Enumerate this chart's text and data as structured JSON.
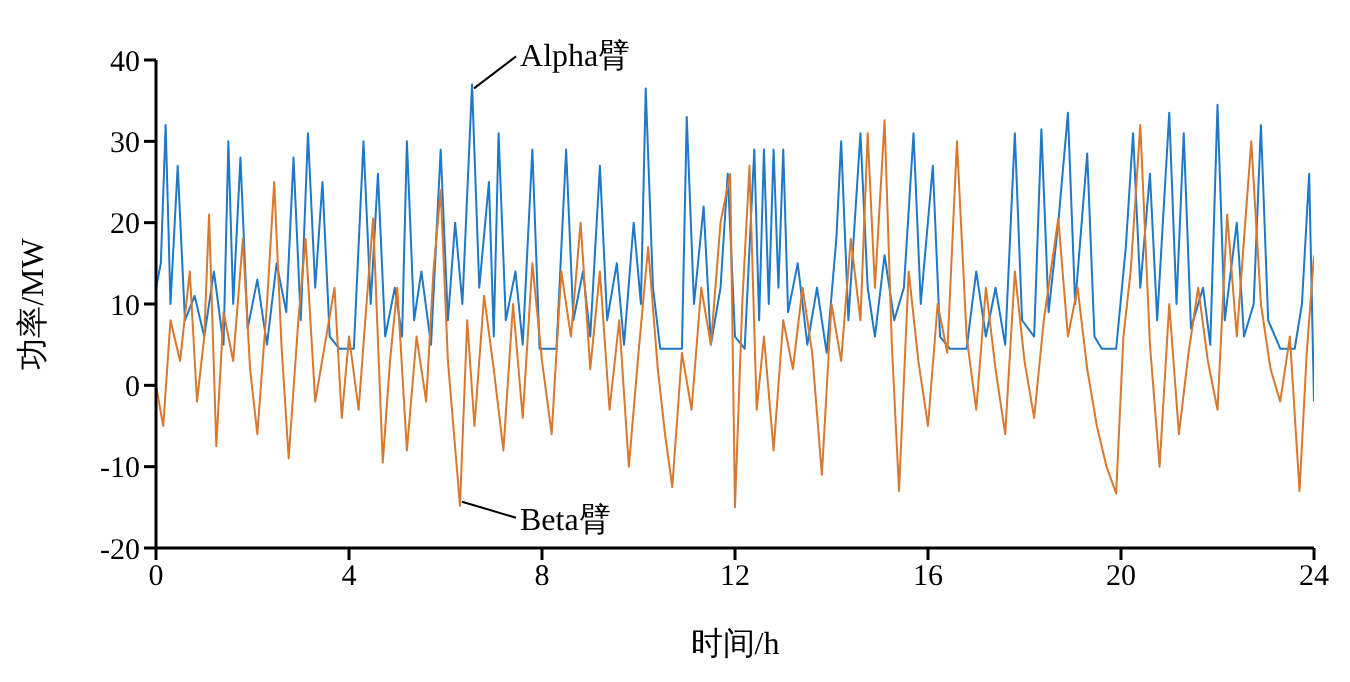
{
  "chart_data": {
    "type": "line",
    "xlabel": "时间/h",
    "ylabel": "功率/MW",
    "xlim": [
      0,
      24
    ],
    "xticks": [
      0,
      4,
      8,
      12,
      16,
      20,
      24
    ],
    "ylim": [
      -20,
      40
    ],
    "yticks": [
      -20,
      -10,
      0,
      10,
      20,
      30,
      40
    ],
    "grid": false,
    "annotations": [
      {
        "text": "Alpha臂",
        "x": 6.55,
        "y": 37
      },
      {
        "text": "Beta臂",
        "x": 6.3,
        "y": -14.8
      }
    ],
    "series": [
      {
        "color": "#1f78c8",
        "x": [
          0,
          0.1,
          0.2,
          0.3,
          0.45,
          0.6,
          0.8,
          1.0,
          1.2,
          1.4,
          1.5,
          1.6,
          1.75,
          1.9,
          2.1,
          2.3,
          2.5,
          2.7,
          2.85,
          3.0,
          3.15,
          3.3,
          3.45,
          3.6,
          3.8,
          4.1,
          4.3,
          4.45,
          4.6,
          4.75,
          4.95,
          5.1,
          5.2,
          5.35,
          5.5,
          5.7,
          5.9,
          6.05,
          6.2,
          6.35,
          6.55,
          6.7,
          6.9,
          7.0,
          7.1,
          7.25,
          7.45,
          7.6,
          7.8,
          7.95,
          8.3,
          8.5,
          8.65,
          8.85,
          9.0,
          9.2,
          9.35,
          9.55,
          9.7,
          9.9,
          10.05,
          10.15,
          10.3,
          10.45,
          10.9,
          11.0,
          11.15,
          11.35,
          11.5,
          11.7,
          11.85,
          12.0,
          12.2,
          12.4,
          12.5,
          12.6,
          12.7,
          12.8,
          12.9,
          13.0,
          13.1,
          13.3,
          13.5,
          13.7,
          13.9,
          14.1,
          14.2,
          14.35,
          14.6,
          14.75,
          14.9,
          15.1,
          15.3,
          15.5,
          15.7,
          15.85,
          16.1,
          16.25,
          16.45,
          16.8,
          17.0,
          17.2,
          17.4,
          17.6,
          17.8,
          17.95,
          18.2,
          18.35,
          18.5,
          18.7,
          18.9,
          19.05,
          19.3,
          19.45,
          19.6,
          19.9,
          20.1,
          20.25,
          20.4,
          20.6,
          20.75,
          21.0,
          21.15,
          21.3,
          21.45,
          21.7,
          21.85,
          22.0,
          22.15,
          22.4,
          22.55,
          22.75,
          22.9,
          23.05,
          23.3,
          23.6,
          23.75,
          23.9,
          24
        ],
        "values": [
          12,
          15,
          32,
          10,
          27,
          8,
          11,
          6,
          14,
          5,
          30,
          10,
          28,
          7,
          13,
          5,
          15,
          9,
          28,
          8,
          31,
          12,
          25,
          6,
          4.5,
          4.5,
          30,
          10,
          26,
          6,
          12,
          6,
          30,
          8,
          14,
          5,
          29,
          8,
          20,
          10,
          37,
          12,
          25,
          6,
          31,
          8,
          14,
          5,
          29,
          4.5,
          4.5,
          29,
          8,
          14,
          6,
          27,
          8,
          15,
          5,
          20,
          10,
          36.5,
          12,
          4.5,
          4.5,
          33,
          10,
          22,
          5,
          12,
          26,
          6,
          4.5,
          29,
          8,
          29,
          10,
          29,
          12,
          29,
          9,
          15,
          5,
          12,
          4,
          18,
          30,
          8,
          31,
          12,
          6,
          16,
          8,
          12,
          31,
          10,
          27,
          6,
          4.5,
          4.5,
          14,
          6,
          12,
          5,
          31,
          8,
          6,
          31.5,
          9,
          20,
          33.5,
          10,
          28.5,
          6,
          4.5,
          4.5,
          17,
          31,
          12,
          26,
          8,
          33.5,
          10,
          31,
          7,
          12,
          5,
          34.5,
          8,
          20,
          6,
          10,
          32,
          8,
          4.5,
          4.5,
          10,
          26,
          -2
        ]
      },
      {
        "color": "#d9782f",
        "x": [
          0,
          0.15,
          0.3,
          0.5,
          0.7,
          0.85,
          1.0,
          1.1,
          1.25,
          1.4,
          1.6,
          1.8,
          1.95,
          2.1,
          2.3,
          2.45,
          2.6,
          2.75,
          2.95,
          3.1,
          3.3,
          3.5,
          3.7,
          3.85,
          4.0,
          4.2,
          4.35,
          4.5,
          4.7,
          4.85,
          5.0,
          5.2,
          5.4,
          5.6,
          5.75,
          5.9,
          6.05,
          6.3,
          6.45,
          6.6,
          6.8,
          7.0,
          7.2,
          7.4,
          7.6,
          7.8,
          8.0,
          8.2,
          8.4,
          8.6,
          8.8,
          9.0,
          9.2,
          9.4,
          9.6,
          9.8,
          10.0,
          10.2,
          10.4,
          10.55,
          10.7,
          10.9,
          11.1,
          11.3,
          11.5,
          11.7,
          11.9,
          12.0,
          12.15,
          12.3,
          12.45,
          12.6,
          12.8,
          13.0,
          13.2,
          13.4,
          13.6,
          13.8,
          14.0,
          14.2,
          14.4,
          14.6,
          14.75,
          14.9,
          15.1,
          15.25,
          15.4,
          15.6,
          15.8,
          16.0,
          16.2,
          16.4,
          16.6,
          16.8,
          17.0,
          17.2,
          17.4,
          17.6,
          17.8,
          18.0,
          18.2,
          18.4,
          18.7,
          18.9,
          19.1,
          19.3,
          19.5,
          19.7,
          19.9,
          20.05,
          20.2,
          20.4,
          20.6,
          20.8,
          21.0,
          21.2,
          21.4,
          21.6,
          21.8,
          22.0,
          22.2,
          22.4,
          22.7,
          22.9,
          23.1,
          23.3,
          23.5,
          23.7,
          23.85,
          24
        ],
        "values": [
          0,
          -5,
          8,
          3,
          14,
          -2,
          6,
          21,
          -7.5,
          9,
          3,
          18,
          2,
          -6,
          10,
          25,
          5,
          -9,
          8,
          18,
          -2,
          5,
          12,
          -4,
          6,
          -3,
          9,
          20.5,
          -9.5,
          3,
          12,
          -8,
          6,
          -2,
          14,
          24,
          3,
          -14.8,
          8,
          -5,
          11,
          2,
          -8,
          10,
          -4,
          15,
          3,
          -6,
          14,
          6,
          20,
          2,
          14,
          -3,
          8,
          -10,
          4,
          17,
          2,
          -6,
          -12.5,
          4,
          -3,
          12,
          5,
          20,
          26,
          -15,
          10,
          27,
          -3,
          6,
          -8,
          8,
          2,
          12,
          4,
          -11,
          10,
          3,
          18,
          8,
          31,
          12,
          32.6,
          5,
          -13,
          14,
          3,
          -5,
          10,
          4,
          30,
          6,
          -3,
          12,
          2,
          -6,
          14,
          3,
          -4,
          8,
          20.5,
          6,
          12,
          2,
          -5,
          -10,
          -13.3,
          6,
          14,
          32,
          5,
          -10,
          10,
          -6,
          4,
          12,
          3,
          -3,
          21,
          6,
          30,
          10,
          2,
          -2,
          6,
          -13,
          4,
          16
        ]
      }
    ]
  }
}
